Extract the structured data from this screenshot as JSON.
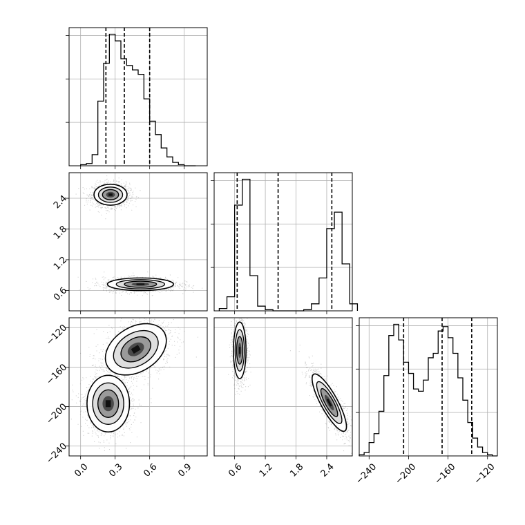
{
  "chart_data": {
    "type": "corner",
    "title": "",
    "grid": true,
    "parameters": [
      {
        "range": [
          -0.1,
          1.1
        ],
        "ticks": [
          "0.0",
          "0.3",
          "0.6",
          "0.9"
        ],
        "tick_values": [
          0.0,
          0.3,
          0.6,
          0.9
        ]
      },
      {
        "range": [
          0.2,
          2.9
        ],
        "ticks": [
          "0.6",
          "1.2",
          "1.8",
          "2.4"
        ],
        "tick_values": [
          0.6,
          1.2,
          1.8,
          2.4
        ]
      },
      {
        "range": [
          -250,
          -110
        ],
        "ticks": [
          "-240",
          "-200",
          "-160",
          "-120"
        ],
        "tick_values": [
          -240,
          -200,
          -160,
          -120
        ]
      }
    ],
    "quantiles": [
      [
        0.22,
        0.38,
        0.6
      ],
      [
        0.65,
        1.45,
        2.5
      ],
      [
        -205,
        -166,
        -136
      ]
    ],
    "histograms": [
      {
        "bins": [
          0.0,
          0.05,
          0.1,
          0.15,
          0.2,
          0.25,
          0.3,
          0.35,
          0.4,
          0.45,
          0.5,
          0.55,
          0.6,
          0.65,
          0.7,
          0.75,
          0.8,
          0.85,
          0.9,
          0.95
        ],
        "counts": [
          1,
          2,
          10,
          58,
          92,
          118,
          112,
          96,
          90,
          86,
          82,
          60,
          40,
          28,
          16,
          8,
          3,
          1,
          0,
          0
        ]
      },
      {
        "bins": [
          0.3,
          0.45,
          0.6,
          0.75,
          0.9,
          1.05,
          1.2,
          1.35,
          1.5,
          1.65,
          1.8,
          1.95,
          2.1,
          2.25,
          2.4,
          2.55,
          2.7,
          2.85
        ],
        "counts": [
          2,
          12,
          90,
          112,
          30,
          4,
          1,
          0,
          0,
          0,
          0,
          1,
          6,
          28,
          70,
          84,
          40,
          6
        ]
      },
      {
        "bins": [
          -250,
          -245,
          -240,
          -235,
          -230,
          -225,
          -220,
          -215,
          -210,
          -205,
          -200,
          -195,
          -190,
          -185,
          -180,
          -175,
          -170,
          -165,
          -160,
          -155,
          -150,
          -145,
          -140,
          -135,
          -130,
          -125,
          -120,
          -115,
          -110
        ],
        "counts": [
          1,
          3,
          12,
          20,
          40,
          72,
          108,
          118,
          104,
          84,
          74,
          60,
          58,
          68,
          88,
          92,
          112,
          116,
          106,
          92,
          70,
          50,
          30,
          16,
          8,
          3,
          1,
          0
        ]
      }
    ],
    "clusters": [
      {
        "pair": [
          1,
          0
        ],
        "cx": 0.26,
        "cy": 2.47,
        "sx": 0.07,
        "sy": 0.1,
        "rot": 0,
        "n": 1500
      },
      {
        "pair": [
          1,
          0
        ],
        "cx": 0.52,
        "cy": 0.72,
        "sx": 0.14,
        "sy": 0.06,
        "rot": 0,
        "n": 1500
      },
      {
        "pair": [
          2,
          0
        ],
        "cx": 0.48,
        "cy": -142,
        "sx": 0.14,
        "sy": 11,
        "rot": -0.55,
        "n": 1400
      },
      {
        "pair": [
          2,
          0
        ],
        "cx": 0.24,
        "cy": -197,
        "sx": 0.09,
        "sy": 14,
        "rot": 0,
        "n": 1400
      },
      {
        "pair": [
          2,
          1
        ],
        "cx": 0.7,
        "cy": -143,
        "sx": 0.06,
        "sy": 14,
        "rot": 0,
        "n": 1400
      },
      {
        "pair": [
          2,
          1
        ],
        "cx": 2.45,
        "cy": -196,
        "sx": 0.08,
        "sy": 16,
        "rot": -0.5,
        "n": 1400
      }
    ]
  }
}
